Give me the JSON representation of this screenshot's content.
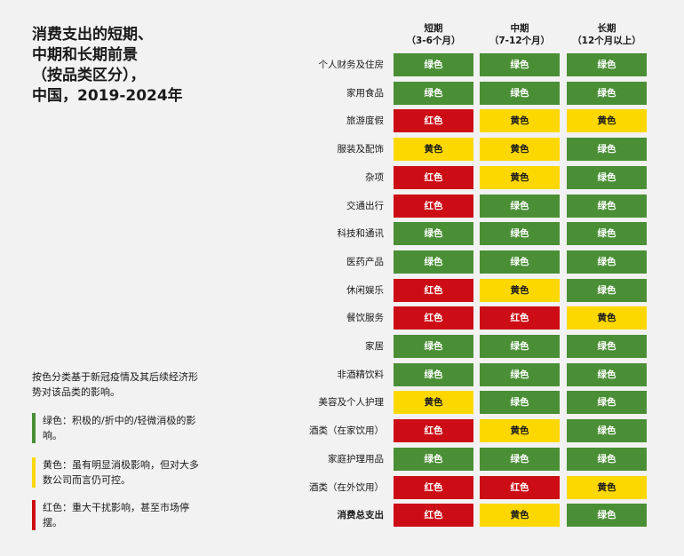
{
  "title": [
    "消费支出的短期、",
    "中期和长期前景",
    "（按品类区分），",
    "中国，2019-2024年"
  ],
  "note": "按色分类基于新冠疫情及其后续经济形势对该品类的影响。",
  "legend": [
    {
      "key": "green",
      "text": "绿色：积极的/折中的/轻微消极的影响。"
    },
    {
      "key": "yellow",
      "text": "黄色：虽有明显消极影响，但对大多数公司而言仍可控。"
    },
    {
      "key": "red",
      "text": "红色：重大干扰影响，甚至市场停摆。"
    }
  ],
  "colors": {
    "green": "#4a8f35",
    "yellow": "#fcd800",
    "red": "#cc0d15"
  },
  "labels": {
    "green": "绿色",
    "yellow": "黄色",
    "red": "红色"
  },
  "chart_data": {
    "type": "table",
    "columns": [
      {
        "name": "短期",
        "sub": "（3-6个月）"
      },
      {
        "name": "中期",
        "sub": "（7-12个月）"
      },
      {
        "name": "长期",
        "sub": "（12个月以上）"
      }
    ],
    "rows": [
      {
        "label": "个人财务及住房",
        "values": [
          "green",
          "green",
          "green"
        ]
      },
      {
        "label": "家用食品",
        "values": [
          "green",
          "green",
          "green"
        ]
      },
      {
        "label": "旅游度假",
        "values": [
          "red",
          "yellow",
          "yellow"
        ]
      },
      {
        "label": "服装及配饰",
        "values": [
          "yellow",
          "yellow",
          "green"
        ]
      },
      {
        "label": "杂项",
        "values": [
          "red",
          "yellow",
          "green"
        ]
      },
      {
        "label": "交通出行",
        "values": [
          "red",
          "green",
          "green"
        ]
      },
      {
        "label": "科技和通讯",
        "values": [
          "green",
          "green",
          "green"
        ]
      },
      {
        "label": "医药产品",
        "values": [
          "green",
          "green",
          "green"
        ]
      },
      {
        "label": "休闲娱乐",
        "values": [
          "red",
          "yellow",
          "green"
        ]
      },
      {
        "label": "餐饮服务",
        "values": [
          "red",
          "red",
          "yellow"
        ]
      },
      {
        "label": "家居",
        "values": [
          "green",
          "green",
          "green"
        ]
      },
      {
        "label": "非酒精饮料",
        "values": [
          "green",
          "green",
          "green"
        ]
      },
      {
        "label": "美容及个人护理",
        "values": [
          "yellow",
          "green",
          "green"
        ]
      },
      {
        "label": "酒类（在家饮用）",
        "values": [
          "red",
          "yellow",
          "green"
        ]
      },
      {
        "label": "家庭护理用品",
        "values": [
          "green",
          "green",
          "green"
        ]
      },
      {
        "label": "酒类（在外饮用）",
        "values": [
          "red",
          "red",
          "yellow"
        ]
      },
      {
        "label": "消费总支出",
        "values": [
          "red",
          "yellow",
          "green"
        ],
        "bold": true
      }
    ]
  }
}
